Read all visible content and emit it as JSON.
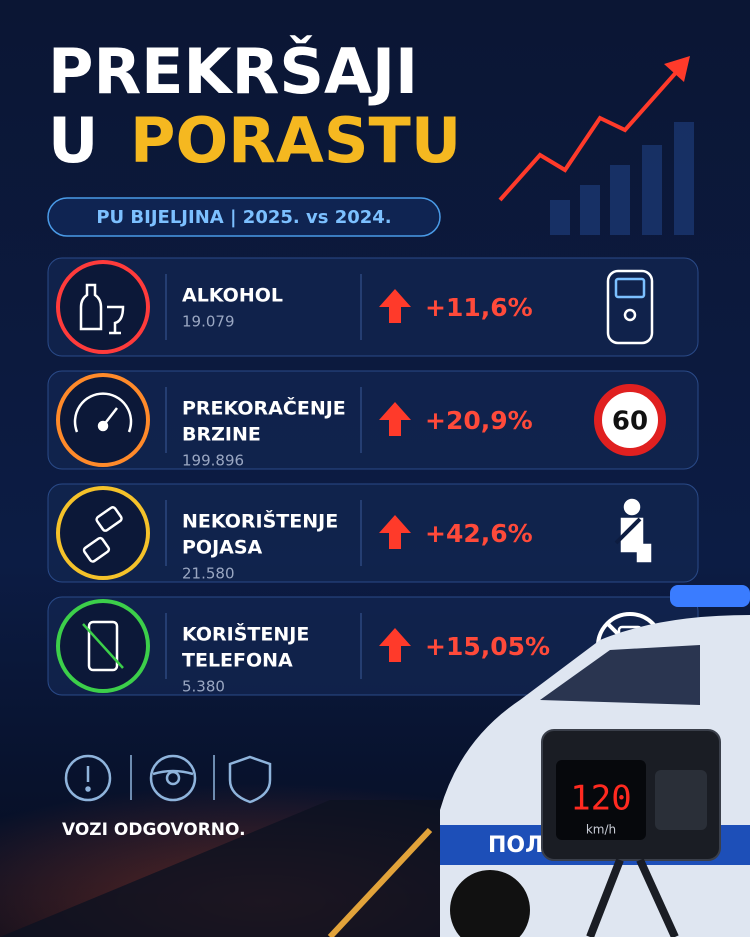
{
  "header": {
    "title_line1": "PREKRŠAJI",
    "title_line2_a": "U",
    "title_line2_b": "PORASTU",
    "subtitle": "PU BIJELJINA | 2025. vs 2024."
  },
  "rows": [
    {
      "label": [
        "ALKOHOL"
      ],
      "count": "19.079",
      "change": "+11,6%"
    },
    {
      "label": [
        "PREKORAČENJE",
        "BRZINE"
      ],
      "count": "199.896",
      "change": "+20,9%"
    },
    {
      "label": [
        "NEKORIŠTENJE",
        "POJASA"
      ],
      "count": "21.580",
      "change": "+42,6%"
    },
    {
      "label": [
        "KORIŠTENJE",
        "TELEFONA"
      ],
      "count": "5.380",
      "change": "+15,05%"
    }
  ],
  "speed_sign": "60",
  "footer": "VOZI ODGOVORNO.",
  "radar": {
    "speed": "120",
    "unit": "km/h"
  },
  "car_text": "ПОЛИЦ"
}
